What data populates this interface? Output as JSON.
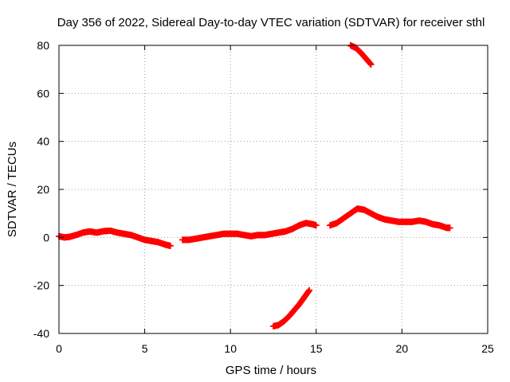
{
  "chart_data": {
    "type": "scatter",
    "title": "Day 356 of 2022, Sidereal Day-to-day VTEC variation (SDTVAR) for receiver sthl",
    "xlabel": "GPS time / hours",
    "ylabel": "SDTVAR / TECUs",
    "xlim": [
      0,
      25
    ],
    "ylim": [
      -40,
      80
    ],
    "xticks": [
      0,
      5,
      10,
      15,
      20,
      25
    ],
    "yticks": [
      -40,
      -20,
      0,
      20,
      40,
      60,
      80
    ],
    "grid": true,
    "marker_color": "#ff0000",
    "series": [
      {
        "name": "main-track",
        "points": [
          [
            0.0,
            0.5
          ],
          [
            0.3,
            0.0
          ],
          [
            0.6,
            0.2
          ],
          [
            1.0,
            1.0
          ],
          [
            1.4,
            2.0
          ],
          [
            1.8,
            2.5
          ],
          [
            2.2,
            2.0
          ],
          [
            2.6,
            2.6
          ],
          [
            3.0,
            2.8
          ],
          [
            3.4,
            2.0
          ],
          [
            3.8,
            1.5
          ],
          [
            4.2,
            1.0
          ],
          [
            4.6,
            0.0
          ],
          [
            5.0,
            -1.0
          ],
          [
            5.4,
            -1.5
          ],
          [
            5.8,
            -2.0
          ],
          [
            6.2,
            -3.0
          ],
          [
            6.5,
            -3.5
          ]
        ]
      },
      {
        "name": "main-track-2",
        "points": [
          [
            7.2,
            -1.0
          ],
          [
            7.6,
            -1.0
          ],
          [
            8.0,
            -0.5
          ],
          [
            8.4,
            0.0
          ],
          [
            8.8,
            0.5
          ],
          [
            9.2,
            1.0
          ],
          [
            9.6,
            1.5
          ],
          [
            10.0,
            1.5
          ],
          [
            10.4,
            1.5
          ],
          [
            10.8,
            1.0
          ],
          [
            11.2,
            0.5
          ],
          [
            11.6,
            1.0
          ],
          [
            12.0,
            1.0
          ],
          [
            12.4,
            1.5
          ],
          [
            12.8,
            2.0
          ],
          [
            13.2,
            2.5
          ],
          [
            13.6,
            3.5
          ],
          [
            14.0,
            5.0
          ],
          [
            14.4,
            6.0
          ],
          [
            14.8,
            5.5
          ],
          [
            15.0,
            5.0
          ]
        ]
      },
      {
        "name": "main-track-3",
        "points": [
          [
            15.8,
            5.0
          ],
          [
            16.2,
            6.0
          ],
          [
            16.6,
            8.0
          ],
          [
            17.0,
            10.0
          ],
          [
            17.4,
            12.0
          ],
          [
            17.8,
            11.5
          ],
          [
            18.2,
            10.0
          ],
          [
            18.6,
            8.5
          ],
          [
            19.0,
            7.5
          ],
          [
            19.4,
            7.0
          ],
          [
            19.8,
            6.5
          ],
          [
            20.2,
            6.5
          ],
          [
            20.6,
            6.5
          ],
          [
            21.0,
            7.0
          ],
          [
            21.4,
            6.5
          ],
          [
            21.8,
            5.5
          ],
          [
            22.2,
            5.0
          ],
          [
            22.6,
            4.0
          ],
          [
            22.8,
            4.0
          ]
        ]
      },
      {
        "name": "low-arc",
        "points": [
          [
            12.5,
            -37.0
          ],
          [
            12.8,
            -36.5
          ],
          [
            13.1,
            -35.0
          ],
          [
            13.4,
            -33.0
          ],
          [
            13.7,
            -30.5
          ],
          [
            14.0,
            -28.0
          ],
          [
            14.3,
            -25.0
          ],
          [
            14.6,
            -22.0
          ]
        ]
      },
      {
        "name": "high-arc",
        "points": [
          [
            17.0,
            80.0
          ],
          [
            17.3,
            79.0
          ],
          [
            17.6,
            77.0
          ],
          [
            17.9,
            74.5
          ],
          [
            18.2,
            72.0
          ]
        ]
      }
    ]
  }
}
